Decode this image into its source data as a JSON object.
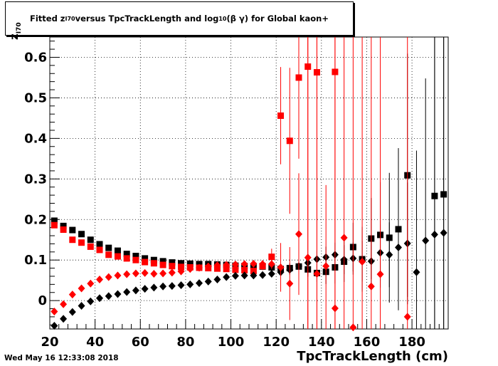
{
  "title_prefix": "Fitted  z",
  "title_sub": "I70",
  "title_mid": "  versus TpcTrackLength and log",
  "title_sub2": "10",
  "title_suffix": " (β γ) for Global kaon+",
  "timestamp": "Wed May 16 12:33:08 2018",
  "chart_data": {
    "type": "scatter",
    "title": "Fitted z_I70 versus TpcTrackLength and log10 (β γ) for Global kaon+",
    "xlabel": "TpcTrackLength (cm)",
    "ylabel": "z_I70",
    "ylabel_main": "z",
    "ylabel_sub": "I70",
    "xlim": [
      20,
      196
    ],
    "ylim": [
      -0.07,
      0.65
    ],
    "grid": true,
    "x_ticks": [
      "20",
      "40",
      "60",
      "80",
      "100",
      "120",
      "140",
      "160",
      "180"
    ],
    "y_ticks": [
      "0",
      "0.1",
      "0.2",
      "0.3",
      "0.4",
      "0.5",
      "0.6"
    ],
    "x_tick_values": [
      20,
      40,
      60,
      80,
      100,
      120,
      140,
      160,
      180
    ],
    "y_tick_values": [
      0,
      0.1,
      0.2,
      0.3,
      0.4,
      0.5,
      0.6
    ],
    "series": [
      {
        "marker": "square",
        "color": "#000000",
        "points": [
          [
            22,
            0.197
          ],
          [
            26,
            0.184
          ],
          [
            30,
            0.174
          ],
          [
            34,
            0.164
          ],
          [
            38,
            0.15
          ],
          [
            42,
            0.139
          ],
          [
            46,
            0.13
          ],
          [
            50,
            0.123
          ],
          [
            54,
            0.115
          ],
          [
            58,
            0.11
          ],
          [
            62,
            0.104
          ],
          [
            66,
            0.1
          ],
          [
            70,
            0.097
          ],
          [
            74,
            0.094
          ],
          [
            78,
            0.092
          ],
          [
            82,
            0.091
          ],
          [
            86,
            0.09
          ],
          [
            90,
            0.09
          ],
          [
            94,
            0.089
          ],
          [
            98,
            0.088
          ],
          [
            102,
            0.086
          ],
          [
            106,
            0.085
          ],
          [
            110,
            0.085
          ],
          [
            114,
            0.084
          ],
          [
            118,
            0.082
          ],
          [
            122,
            0.078
          ],
          [
            126,
            0.08
          ],
          [
            130,
            0.084
          ],
          [
            134,
            0.077
          ],
          [
            138,
            0.068
          ],
          [
            142,
            0.071
          ],
          [
            146,
            0.082
          ],
          [
            150,
            0.096
          ],
          [
            154,
            0.132
          ],
          [
            158,
            0.102
          ],
          [
            162,
            0.153
          ],
          [
            166,
            0.162
          ],
          [
            170,
            0.155
          ],
          [
            174,
            0.176
          ],
          [
            178,
            0.309
          ],
          [
            190,
            0.258
          ],
          [
            194,
            0.262
          ]
        ],
        "errors": [
          [
            0.004
          ],
          [
            0.004
          ],
          [
            0.004
          ],
          [
            0.004
          ],
          [
            0.004
          ],
          [
            0.004
          ],
          [
            0.004
          ],
          [
            0.004
          ],
          [
            0.004
          ],
          [
            0.004
          ],
          [
            0.004
          ],
          [
            0.004
          ],
          [
            0.004
          ],
          [
            0.004
          ],
          [
            0.004
          ],
          [
            0.004
          ],
          [
            0.004
          ],
          [
            0.004
          ],
          [
            0.004
          ],
          [
            0.004
          ],
          [
            0.005
          ],
          [
            0.005
          ],
          [
            0.006
          ],
          [
            0.007
          ],
          [
            0.008
          ],
          [
            0.01
          ],
          [
            0.012
          ],
          [
            0.014
          ],
          [
            0.018
          ],
          [
            0.022
          ],
          [
            0.03
          ],
          [
            0.04
          ],
          [
            0.05
          ],
          [
            0.06
          ],
          [
            0.08
          ],
          [
            0.1
          ],
          [
            0.13
          ],
          [
            0.16
          ],
          [
            0.2
          ],
          [
            0.3
          ],
          [
            0.5
          ],
          [
            0.5
          ]
        ]
      },
      {
        "marker": "square",
        "color": "#ff0000",
        "points": [
          [
            22,
            0.186
          ],
          [
            26,
            0.175
          ],
          [
            30,
            0.15
          ],
          [
            34,
            0.143
          ],
          [
            38,
            0.133
          ],
          [
            42,
            0.125
          ],
          [
            46,
            0.113
          ],
          [
            50,
            0.109
          ],
          [
            54,
            0.104
          ],
          [
            58,
            0.1
          ],
          [
            62,
            0.095
          ],
          [
            66,
            0.092
          ],
          [
            70,
            0.088
          ],
          [
            74,
            0.085
          ],
          [
            78,
            0.083
          ],
          [
            82,
            0.082
          ],
          [
            86,
            0.081
          ],
          [
            90,
            0.08
          ],
          [
            94,
            0.079
          ],
          [
            98,
            0.078
          ],
          [
            102,
            0.076
          ],
          [
            106,
            0.075
          ],
          [
            110,
            0.073
          ],
          [
            114,
            0.085
          ],
          [
            118,
            0.108
          ],
          [
            122,
            0.456
          ],
          [
            126,
            0.394
          ],
          [
            130,
            0.55
          ],
          [
            134,
            0.577
          ],
          [
            138,
            0.563
          ],
          [
            146,
            0.564
          ]
        ],
        "errors": [
          [
            0.004
          ],
          [
            0.004
          ],
          [
            0.004
          ],
          [
            0.004
          ],
          [
            0.004
          ],
          [
            0.004
          ],
          [
            0.004
          ],
          [
            0.004
          ],
          [
            0.004
          ],
          [
            0.004
          ],
          [
            0.004
          ],
          [
            0.004
          ],
          [
            0.004
          ],
          [
            0.004
          ],
          [
            0.004
          ],
          [
            0.004
          ],
          [
            0.004
          ],
          [
            0.004
          ],
          [
            0.005
          ],
          [
            0.005
          ],
          [
            0.006
          ],
          [
            0.007
          ],
          [
            0.008
          ],
          [
            0.01
          ],
          [
            0.02
          ],
          [
            0.12
          ],
          [
            0.18
          ],
          [
            0.2
          ],
          [
            0.9
          ],
          [
            0.9
          ],
          [
            0.9
          ]
        ]
      },
      {
        "marker": "diamond",
        "color": "#000000",
        "points": [
          [
            22,
            -0.062
          ],
          [
            26,
            -0.045
          ],
          [
            30,
            -0.028
          ],
          [
            34,
            -0.013
          ],
          [
            38,
            -0.002
          ],
          [
            42,
            0.006
          ],
          [
            46,
            0.011
          ],
          [
            50,
            0.016
          ],
          [
            54,
            0.021
          ],
          [
            58,
            0.025
          ],
          [
            62,
            0.029
          ],
          [
            66,
            0.032
          ],
          [
            70,
            0.035
          ],
          [
            74,
            0.036
          ],
          [
            78,
            0.038
          ],
          [
            82,
            0.04
          ],
          [
            86,
            0.043
          ],
          [
            90,
            0.047
          ],
          [
            94,
            0.052
          ],
          [
            98,
            0.058
          ],
          [
            102,
            0.061
          ],
          [
            106,
            0.062
          ],
          [
            110,
            0.062
          ],
          [
            114,
            0.063
          ],
          [
            118,
            0.066
          ],
          [
            122,
            0.07
          ],
          [
            126,
            0.076
          ],
          [
            130,
            0.085
          ],
          [
            134,
            0.093
          ],
          [
            138,
            0.102
          ],
          [
            142,
            0.107
          ],
          [
            146,
            0.113
          ],
          [
            150,
            0.101
          ],
          [
            154,
            0.104
          ],
          [
            158,
            0.097
          ],
          [
            162,
            0.097
          ],
          [
            166,
            0.118
          ],
          [
            170,
            0.113
          ],
          [
            174,
            0.131
          ],
          [
            178,
            0.141
          ],
          [
            182,
            0.07
          ],
          [
            186,
            0.148
          ],
          [
            190,
            0.163
          ],
          [
            194,
            0.167
          ]
        ],
        "errors": [
          [
            0.004
          ],
          [
            0.004
          ],
          [
            0.004
          ],
          [
            0.004
          ],
          [
            0.004
          ],
          [
            0.004
          ],
          [
            0.004
          ],
          [
            0.004
          ],
          [
            0.004
          ],
          [
            0.004
          ],
          [
            0.004
          ],
          [
            0.004
          ],
          [
            0.004
          ],
          [
            0.004
          ],
          [
            0.004
          ],
          [
            0.004
          ],
          [
            0.004
          ],
          [
            0.004
          ],
          [
            0.004
          ],
          [
            0.004
          ],
          [
            0.004
          ],
          [
            0.005
          ],
          [
            0.006
          ],
          [
            0.007
          ],
          [
            0.008
          ],
          [
            0.01
          ],
          [
            0.012
          ],
          [
            0.014
          ],
          [
            0.018
          ],
          [
            0.022
          ],
          [
            0.026
          ],
          [
            0.03
          ],
          [
            0.036
          ],
          [
            0.04
          ],
          [
            0.05
          ],
          [
            0.06
          ],
          [
            0.07
          ],
          [
            0.08
          ],
          [
            0.1
          ],
          [
            0.15
          ],
          [
            0.3
          ],
          [
            0.4
          ],
          [
            0.5
          ],
          [
            0.5
          ]
        ]
      },
      {
        "marker": "diamond",
        "color": "#ff0000",
        "points": [
          [
            22,
            -0.027
          ],
          [
            26,
            -0.009
          ],
          [
            30,
            0.015
          ],
          [
            34,
            0.03
          ],
          [
            38,
            0.042
          ],
          [
            42,
            0.052
          ],
          [
            46,
            0.058
          ],
          [
            50,
            0.062
          ],
          [
            54,
            0.065
          ],
          [
            58,
            0.067
          ],
          [
            62,
            0.068
          ],
          [
            66,
            0.066
          ],
          [
            70,
            0.067
          ],
          [
            74,
            0.069
          ],
          [
            78,
            0.072
          ],
          [
            82,
            0.078
          ],
          [
            86,
            0.081
          ],
          [
            90,
            0.084
          ],
          [
            94,
            0.087
          ],
          [
            98,
            0.088
          ],
          [
            102,
            0.089
          ],
          [
            106,
            0.09
          ],
          [
            110,
            0.091
          ],
          [
            114,
            0.09
          ],
          [
            118,
            0.09
          ],
          [
            122,
            0.082
          ],
          [
            126,
            0.042
          ],
          [
            130,
            0.164
          ],
          [
            134,
            0.106
          ],
          [
            138,
            0.066
          ],
          [
            142,
            0.085
          ],
          [
            146,
            -0.019
          ],
          [
            150,
            0.155
          ],
          [
            154,
            -0.066
          ],
          [
            158,
            0.096
          ],
          [
            162,
            0.035
          ],
          [
            166,
            0.065
          ],
          [
            178,
            -0.04
          ]
        ],
        "errors": [
          [
            0.004
          ],
          [
            0.004
          ],
          [
            0.004
          ],
          [
            0.004
          ],
          [
            0.004
          ],
          [
            0.004
          ],
          [
            0.004
          ],
          [
            0.004
          ],
          [
            0.004
          ],
          [
            0.004
          ],
          [
            0.004
          ],
          [
            0.004
          ],
          [
            0.004
          ],
          [
            0.004
          ],
          [
            0.004
          ],
          [
            0.004
          ],
          [
            0.004
          ],
          [
            0.004
          ],
          [
            0.005
          ],
          [
            0.005
          ],
          [
            0.006
          ],
          [
            0.007
          ],
          [
            0.008
          ],
          [
            0.01
          ],
          [
            0.012
          ],
          [
            0.06
          ],
          [
            0.09
          ],
          [
            0.15
          ],
          [
            0.9
          ],
          [
            0.9
          ],
          [
            0.2
          ],
          [
            0.9
          ],
          [
            0.9
          ],
          [
            0.9
          ],
          [
            0.9
          ],
          [
            0.9
          ],
          [
            0.9
          ],
          [
            0.9
          ]
        ]
      }
    ]
  }
}
